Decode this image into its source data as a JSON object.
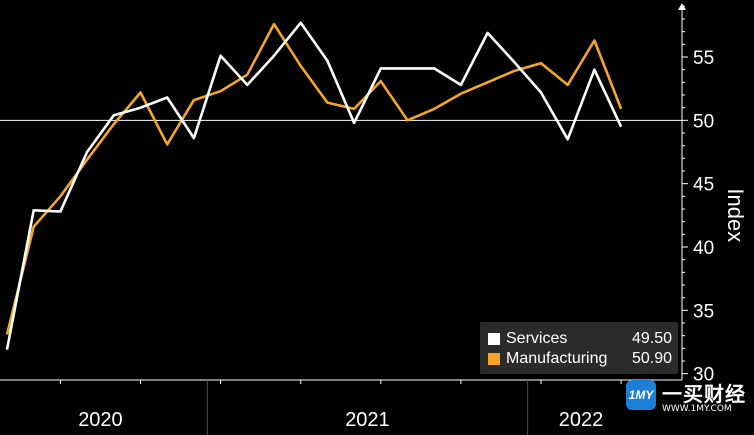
{
  "chart_data": {
    "type": "line",
    "title": "",
    "xlabel": "",
    "ylabel": "Index",
    "ylim": [
      29.5,
      59.5
    ],
    "yticks": [
      30,
      35,
      40,
      45,
      50,
      55
    ],
    "reference_line": 50,
    "year_labels": [
      {
        "label": "2020",
        "from": "2020-05",
        "to": "2020-12"
      },
      {
        "label": "2021",
        "from": "2021-01",
        "to": "2021-12"
      },
      {
        "label": "2022",
        "from": "2022-01",
        "to": "2022-04"
      }
    ],
    "x": [
      "2020-05",
      "2020-06",
      "2020-07",
      "2020-08",
      "2020-09",
      "2020-10",
      "2020-11",
      "2020-12",
      "2021-01",
      "2021-02",
      "2021-03",
      "2021-04",
      "2021-05",
      "2021-06",
      "2021-07",
      "2021-08",
      "2021-09",
      "2021-10",
      "2021-11",
      "2021-12",
      "2022-01",
      "2022-02",
      "2022-03",
      "2022-04"
    ],
    "series": [
      {
        "name": "Services",
        "color": "#ffffff",
        "last_value": "49.50",
        "values": [
          31.9,
          42.9,
          42.8,
          47.5,
          50.4,
          51.0,
          51.8,
          48.6,
          55.1,
          52.8,
          55.1,
          57.7,
          54.7,
          49.8,
          54.1,
          54.1,
          54.1,
          52.8,
          56.9,
          54.6,
          52.2,
          48.5,
          54.0,
          49.5
        ]
      },
      {
        "name": "Manufacturing",
        "color": "#f5a623",
        "last_value": "50.90",
        "values": [
          33.1,
          41.6,
          44.0,
          46.9,
          49.7,
          52.2,
          48.1,
          51.6,
          52.3,
          53.6,
          57.6,
          54.3,
          51.4,
          50.9,
          53.1,
          50.0,
          50.9,
          52.1,
          53.0,
          53.9,
          54.5,
          52.8,
          56.3,
          50.9
        ]
      }
    ],
    "grid": false
  },
  "watermark": {
    "logo": "1MY",
    "name": "一买财经",
    "url": "WWW.1MY.COM"
  }
}
